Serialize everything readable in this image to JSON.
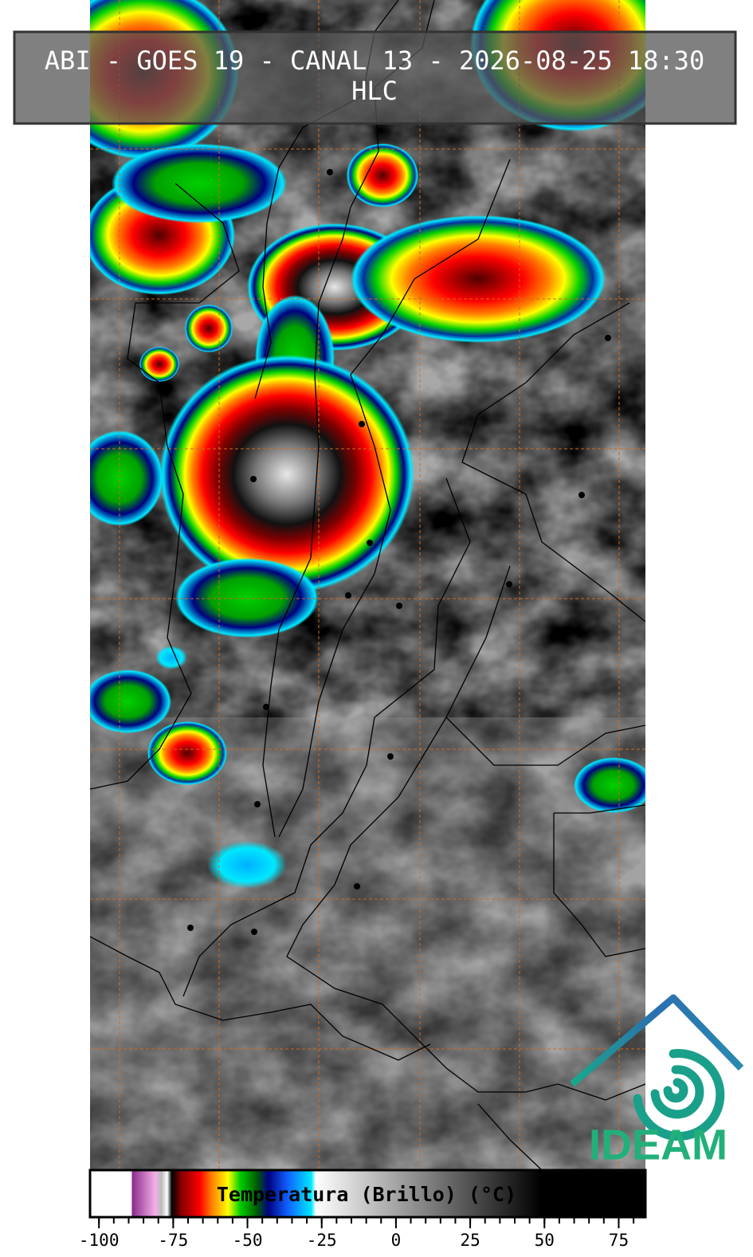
{
  "header": {
    "title": "ABI - GOES 19 - CANAL 13 - 2026-08-25 18:30",
    "subtitle": "HLC"
  },
  "colorbar": {
    "label": "Temperatura (Brillo) (°C)",
    "lim": [
      -103,
      84
    ],
    "ticks": [
      -100,
      -75,
      -50,
      -25,
      0,
      25,
      50,
      75
    ],
    "minor_tick_step": 5,
    "colormap": [
      {
        "value": -103,
        "color": "#ffffff"
      },
      {
        "value": -89,
        "color": "#ffffff"
      },
      {
        "value": -88.9,
        "color": "#8a2a8a"
      },
      {
        "value": -81,
        "color": "#f4b0e8"
      },
      {
        "value": -79,
        "color": "#bbbbbb"
      },
      {
        "value": -77,
        "color": "#ffffff"
      },
      {
        "value": -75.5,
        "color": "#000000"
      },
      {
        "value": -72.5,
        "color": "#800000"
      },
      {
        "value": -66,
        "color": "#ff0000"
      },
      {
        "value": -62,
        "color": "#ff8000"
      },
      {
        "value": -56.5,
        "color": "#ffff00"
      },
      {
        "value": -52.5,
        "color": "#00d000"
      },
      {
        "value": -47,
        "color": "#006000"
      },
      {
        "value": -43,
        "color": "#000080"
      },
      {
        "value": -36.5,
        "color": "#1060ff"
      },
      {
        "value": -28.5,
        "color": "#00e8ff"
      },
      {
        "value": -27,
        "color": "#ffffff"
      },
      {
        "value": 49,
        "color": "#000000"
      },
      {
        "value": 84,
        "color": "#000000"
      }
    ]
  },
  "logo": {
    "text": "IDEAM"
  }
}
